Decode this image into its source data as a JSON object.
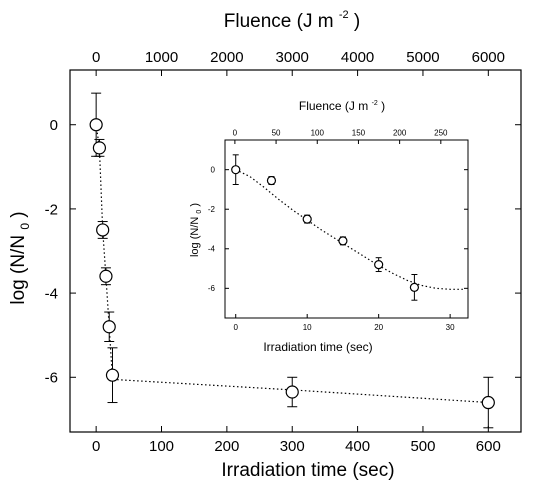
{
  "chart_data": [
    {
      "type": "scatter",
      "xlabel": "Irradiation time (sec)",
      "ylabel": "log (N/N 0)",
      "ylabel_main": "log (N/N",
      "ylabel_sub": "0",
      "ylabel_close": ")",
      "x2label": "Fluence (J m -2)",
      "x2label_main": "Fluence (J m",
      "x2label_sup": "-2",
      "x2label_close": ")",
      "xlim": [
        -40,
        650
      ],
      "ylim": [
        -7.3,
        1.3
      ],
      "x2lim": [
        -400,
        6500
      ],
      "xticks": [
        0,
        100,
        200,
        300,
        400,
        500,
        600
      ],
      "yticks": [
        0,
        -2,
        -4,
        -6
      ],
      "x2ticks": [
        0,
        1000,
        2000,
        3000,
        4000,
        5000,
        6000
      ],
      "grid": false,
      "series": [
        {
          "x": [
            0,
            5,
            10,
            15,
            20,
            25,
            300,
            600
          ],
          "y": [
            0,
            -0.55,
            -2.5,
            -3.6,
            -4.8,
            -5.95,
            -6.35,
            -6.6
          ],
          "yerr": [
            0.75,
            0.2,
            0.2,
            0.2,
            0.35,
            0.65,
            0.35,
            0.6
          ],
          "fit_x": [
            0,
            5,
            10,
            15,
            20,
            25,
            300,
            600
          ],
          "fit_y": [
            0,
            -0.55,
            -2.5,
            -3.6,
            -4.8,
            -6.05,
            -6.3,
            -6.6
          ]
        }
      ]
    },
    {
      "type": "scatter",
      "xlabel": "Irradiation time (sec)",
      "ylabel": "log (N/N 0)",
      "ylabel_main": "log (N/N",
      "ylabel_sub": "0",
      "ylabel_close": ")",
      "x2label": "Fluence (J m -2)",
      "x2label_main": "Fluence (J m",
      "x2label_sup": "-2",
      "x2label_close": ")",
      "xlim": [
        -1.5,
        32.5
      ],
      "ylim": [
        -7.5,
        1.5
      ],
      "x2lim": [
        -12,
        283
      ],
      "xticks": [
        0,
        10,
        20,
        30
      ],
      "yticks": [
        0,
        -2,
        -4,
        -6
      ],
      "x2ticks": [
        0,
        50,
        100,
        150,
        200,
        250
      ],
      "grid": false,
      "series": [
        {
          "x": [
            0,
            5,
            10,
            15,
            20,
            25
          ],
          "y": [
            0,
            -0.55,
            -2.5,
            -3.6,
            -4.8,
            -5.95
          ],
          "yerr": [
            0.75,
            0.2,
            0.2,
            0.2,
            0.35,
            0.65
          ],
          "fit_x": [
            0,
            2,
            4,
            6,
            8,
            10,
            12,
            14,
            16,
            18,
            20,
            22,
            24,
            26,
            28,
            30,
            32
          ],
          "fit_y": [
            0,
            -0.35,
            -0.9,
            -1.5,
            -2.05,
            -2.55,
            -3.05,
            -3.5,
            -3.95,
            -4.4,
            -4.85,
            -5.25,
            -5.6,
            -5.85,
            -6.0,
            -6.05,
            -6.05
          ]
        }
      ]
    }
  ]
}
